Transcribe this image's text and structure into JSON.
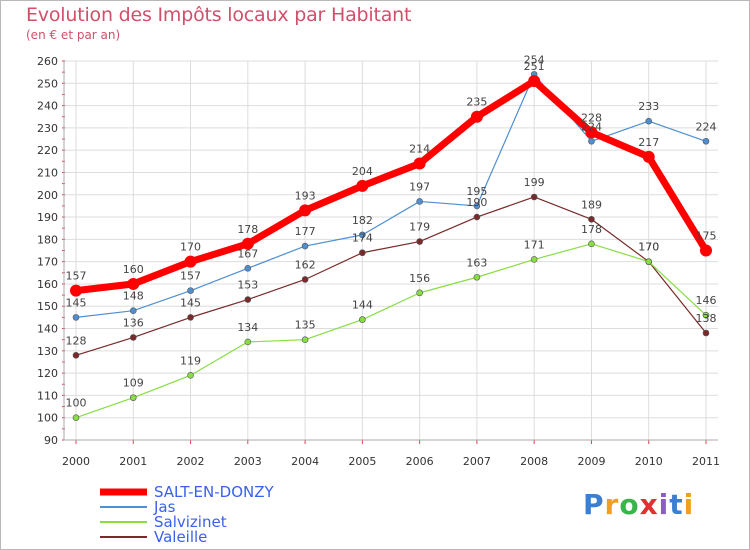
{
  "chart_data": {
    "type": "line",
    "title": "Evolution des Impôts locaux par Habitant",
    "subtitle": "(en € et par an)",
    "xlabel": "",
    "ylabel": "",
    "x": [
      "2000",
      "2001",
      "2002",
      "2003",
      "2004",
      "2005",
      "2006",
      "2007",
      "2008",
      "2009",
      "2010",
      "2011"
    ],
    "ylim": [
      90,
      260
    ],
    "yticks": [
      90,
      100,
      110,
      120,
      130,
      140,
      150,
      160,
      170,
      180,
      190,
      200,
      210,
      220,
      230,
      240,
      250,
      260
    ],
    "grid": true,
    "legend_position": "bottom-left",
    "series": [
      {
        "name": "SALT-EN-DONZY",
        "color": "#ff0000",
        "values": [
          157,
          160,
          170,
          178,
          193,
          204,
          214,
          235,
          251,
          228,
          217,
          175
        ]
      },
      {
        "name": "Jas",
        "color": "#4f8fd0",
        "values": [
          145,
          148,
          157,
          167,
          177,
          182,
          197,
          195,
          254,
          224,
          233,
          224
        ]
      },
      {
        "name": "Salvizinet",
        "color": "#88dd44",
        "values": [
          100,
          109,
          119,
          134,
          135,
          144,
          156,
          163,
          171,
          178,
          170,
          146
        ]
      },
      {
        "name": "Valeille",
        "color": "#7a2a2a",
        "values": [
          128,
          136,
          145,
          153,
          162,
          174,
          179,
          190,
          199,
          189,
          170,
          138
        ]
      }
    ],
    "label_colors": {
      "axis": "#333333",
      "grid": "#dddddd",
      "title": "#d0506a",
      "legend": "#3a5ff0"
    }
  },
  "logo": {
    "text": "Proxiti",
    "letters": [
      "P",
      "r",
      "o",
      "x",
      "i",
      "t",
      "i"
    ],
    "colors": [
      "#3a7fd4",
      "#f0a020",
      "#3ab54a",
      "#e03030",
      "#8a5fc4",
      "#3a7fd4",
      "#f0a020"
    ]
  }
}
